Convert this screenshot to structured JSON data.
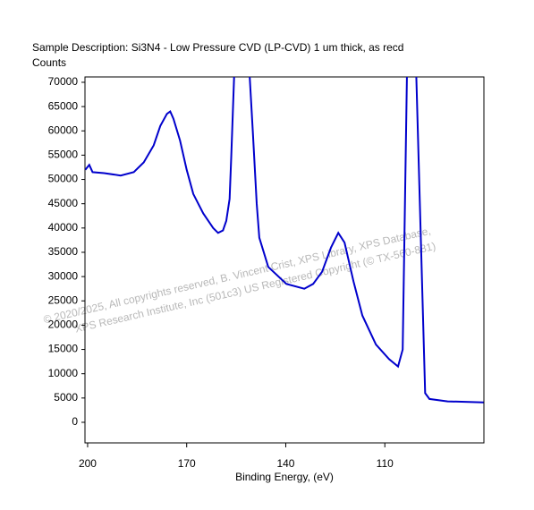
{
  "chart_data": {
    "type": "line",
    "title": "Sample Description:  Si3N4 - Low Pressure CVD (LP-CVD) 1 um thick, as recd",
    "y_label": "Counts",
    "x_label": "Binding Energy, (eV)",
    "annotations": [
      "© 2020/2025,  All copyrights reserved,   B. Vincent Crist, XPS Library, XPS Database,",
      "XPS Research Institute, Inc (501c3)     US Registered Copyright (© TX-560-881)"
    ],
    "color": "#0000cc",
    "xlim": [
      200.8,
      80
    ],
    "ylim": [
      -4240,
      71100
    ],
    "xticks": [
      200,
      170,
      140,
      110
    ],
    "yticks": [
      0,
      5000,
      10000,
      15000,
      20000,
      25000,
      30000,
      35000,
      40000,
      45000,
      50000,
      55000,
      60000,
      65000,
      70000
    ],
    "x": [
      200.7,
      199.5,
      198.5,
      195,
      190,
      186,
      183,
      180,
      178,
      176,
      175,
      174,
      172,
      170,
      168,
      165,
      162,
      160.5,
      159,
      158,
      157,
      156.5,
      155.6,
      151,
      150,
      148.8,
      148,
      145.3,
      139.8,
      134.4,
      131.7,
      129,
      126.3,
      124.1,
      122.2,
      119.5,
      116.8,
      112.7,
      108.7,
      106,
      104.6,
      103.3,
      100.5,
      97.8,
      96.5,
      91,
      80.1
    ],
    "values": [
      52000,
      53000,
      51500,
      51300,
      50800,
      51500,
      53500,
      57000,
      61000,
      63500,
      64000,
      62500,
      58000,
      52000,
      47000,
      43000,
      40000,
      39000,
      39500,
      41500,
      46000,
      55000,
      72000,
      72000,
      60000,
      45000,
      38000,
      32000,
      28500,
      27500,
      28500,
      31000,
      36000,
      39000,
      37000,
      29000,
      22000,
      16000,
      13000,
      11500,
      15000,
      72000,
      72000,
      6000,
      4800,
      4300,
      4100
    ]
  }
}
